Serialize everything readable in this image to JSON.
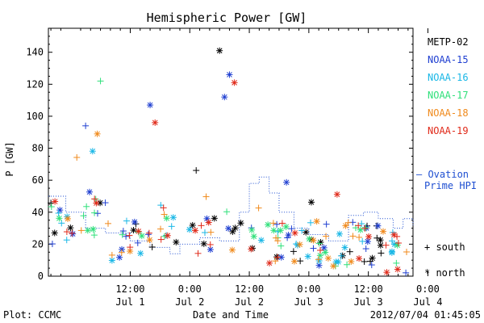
{
  "chart_data": {
    "type": "scatter",
    "title": "Hemispheric Power [GW]",
    "xlabel": "Date and Time",
    "ylabel": "P [GW]",
    "ylim": [
      0,
      155
    ],
    "yticks": [
      0,
      20,
      40,
      60,
      80,
      100,
      120,
      140
    ],
    "xlim_hours": [
      -16.5,
      57
    ],
    "xticks": [
      {
        "hour": 0,
        "time": "12:00",
        "day": "Jul 1"
      },
      {
        "hour": 12,
        "time": "0:00",
        "day": "Jul 2"
      },
      {
        "hour": 24,
        "time": "12:00",
        "day": "Jul 2"
      },
      {
        "hour": 36,
        "time": "0:00",
        "day": "Jul 3"
      },
      {
        "hour": 48,
        "time": "12:00",
        "day": "Jul 3"
      },
      {
        "hour": 60,
        "time": "0:00",
        "day": "Jul 4"
      }
    ],
    "series": [
      {
        "name": "METP-02",
        "color": "#000000"
      },
      {
        "name": "NOAA-15",
        "color": "#1f3fd1"
      },
      {
        "name": "NOAA-16",
        "color": "#19b7e6"
      },
      {
        "name": "NOAA-17",
        "color": "#2fe07a"
      },
      {
        "name": "NOAA-18",
        "color": "#f08a1c"
      },
      {
        "name": "NOAA-19",
        "color": "#e02a1a"
      }
    ],
    "ovation": {
      "label_line1": "— Ovation",
      "label_line2": "Prime HPI",
      "color": "#1f4fd1"
    },
    "marker_legend": {
      "south": "+ south",
      "north": "* north"
    },
    "footer_left": "Plot: CCMC",
    "footer_right": "2012/07/04 01:45:05"
  }
}
